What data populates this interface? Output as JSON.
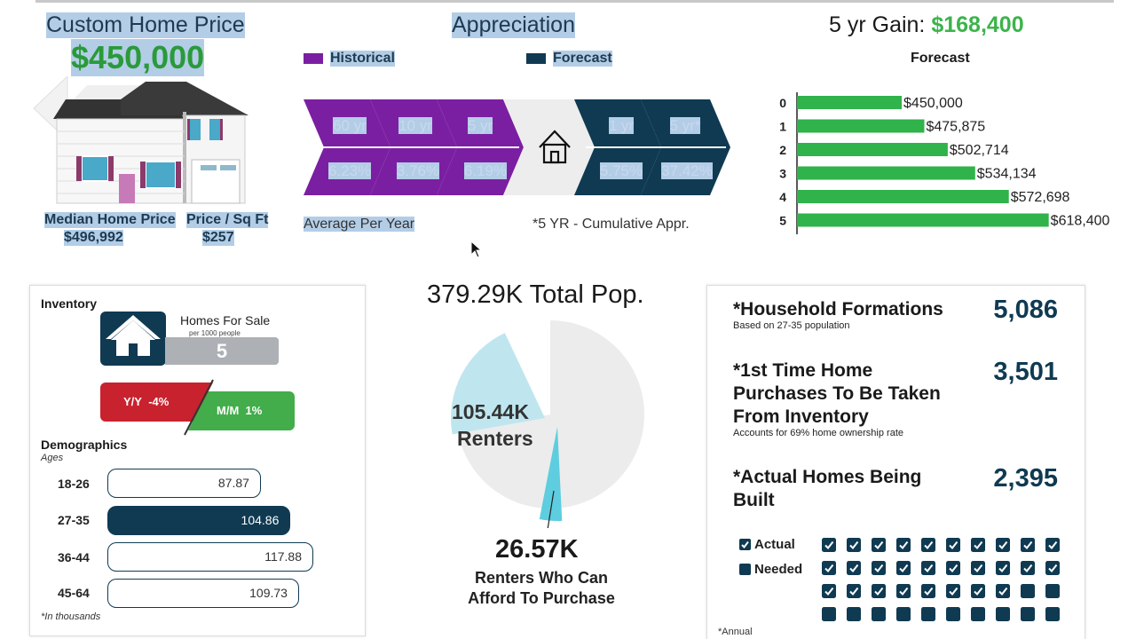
{
  "header": {
    "custom_price_title": "Custom Home Price",
    "custom_price_value": "$450,000",
    "median_label": "Median Home Price",
    "median_value": "$496,992",
    "sqft_label": "Price / Sq Ft",
    "sqft_value": "$257"
  },
  "appreciation": {
    "title": "Appreciation",
    "legend_historical": "Historical",
    "legend_forecast": "Forecast",
    "historical": [
      {
        "period": "60 yr",
        "rate": "6.23%"
      },
      {
        "period": "10 yr",
        "rate": "3.76%"
      },
      {
        "period": "5 yr",
        "rate": "6.19%"
      }
    ],
    "forecast": [
      {
        "period": "1 yr",
        "rate": "5.75%"
      },
      {
        "period": "5 yr*",
        "rate": "37.42%"
      }
    ],
    "avg_note": "Average Per Year",
    "cum_note": "*5 YR - Cumulative Appr.",
    "colors": {
      "historical": "#7b1fa2",
      "forecast": "#0f3a52",
      "house": "#e8e8e8"
    }
  },
  "gain": {
    "title_prefix": "5 yr Gain:",
    "title_value": "$168,400",
    "chart_label": "Forecast"
  },
  "chart_data": {
    "type": "bar",
    "orientation": "horizontal",
    "title": "Forecast",
    "categories": [
      "0",
      "1",
      "2",
      "3",
      "4",
      "5"
    ],
    "values": [
      450000,
      475875,
      502714,
      534134,
      572698,
      618400
    ],
    "value_labels": [
      "$450,000",
      "$475,875",
      "$502,714",
      "$534,134",
      "$572,698",
      "$618,400"
    ],
    "xlim": [
      330000,
      635000
    ],
    "color": "#2fb34a"
  },
  "inventory": {
    "title": "Inventory",
    "homes_for_sale_label": "Homes For Sale",
    "homes_for_sale_sub": "per 1000 people",
    "homes_for_sale_value": "5",
    "yy_label": "Y/Y",
    "yy_value": "-4%",
    "mm_label": "M/M",
    "mm_value": "1%",
    "house_icon": "house-icon"
  },
  "demographics": {
    "title": "Demographics",
    "subtitle": "Ages",
    "rows": [
      {
        "age": "18-26",
        "value": 87.87,
        "label": "87.87",
        "highlight": false
      },
      {
        "age": "27-35",
        "value": 104.86,
        "label": "104.86",
        "highlight": true
      },
      {
        "age": "36-44",
        "value": 117.88,
        "label": "117.88",
        "highlight": false
      },
      {
        "age": "45-64",
        "value": 109.73,
        "label": "109.73",
        "highlight": false
      }
    ],
    "note": "*In thousands"
  },
  "population": {
    "title": "379.29K Total Pop.",
    "renters_value": "105.44K",
    "renters_label": "Renters",
    "afford_value": "26.57K",
    "afford_label_1": "Renters Who Can",
    "afford_label_2": "Afford To Purchase",
    "total": 379.29,
    "renters": 105.44,
    "afford": 26.57,
    "colors": {
      "total": "#ececec",
      "renters": "#bfe6ef",
      "afford": "#5ecde0"
    }
  },
  "household": {
    "formations_title": "*Household Formations",
    "formations_sub": "Based on 27-35 population",
    "formations_value": "5,086",
    "first_time_title_1": "*1st Time Home",
    "first_time_title_2": "Purchases To Be Taken",
    "first_time_title_3": "From Inventory",
    "first_time_sub": "Accounts for 69% home ownership rate",
    "first_time_value": "3,501",
    "built_title_1": "*Actual Homes Being",
    "built_title_2": "Built",
    "built_value": "2,395",
    "legend_actual": "Actual",
    "legend_needed": "Needed",
    "grid_total": 40,
    "grid_actual": 28,
    "annual_note": "*Annual"
  }
}
